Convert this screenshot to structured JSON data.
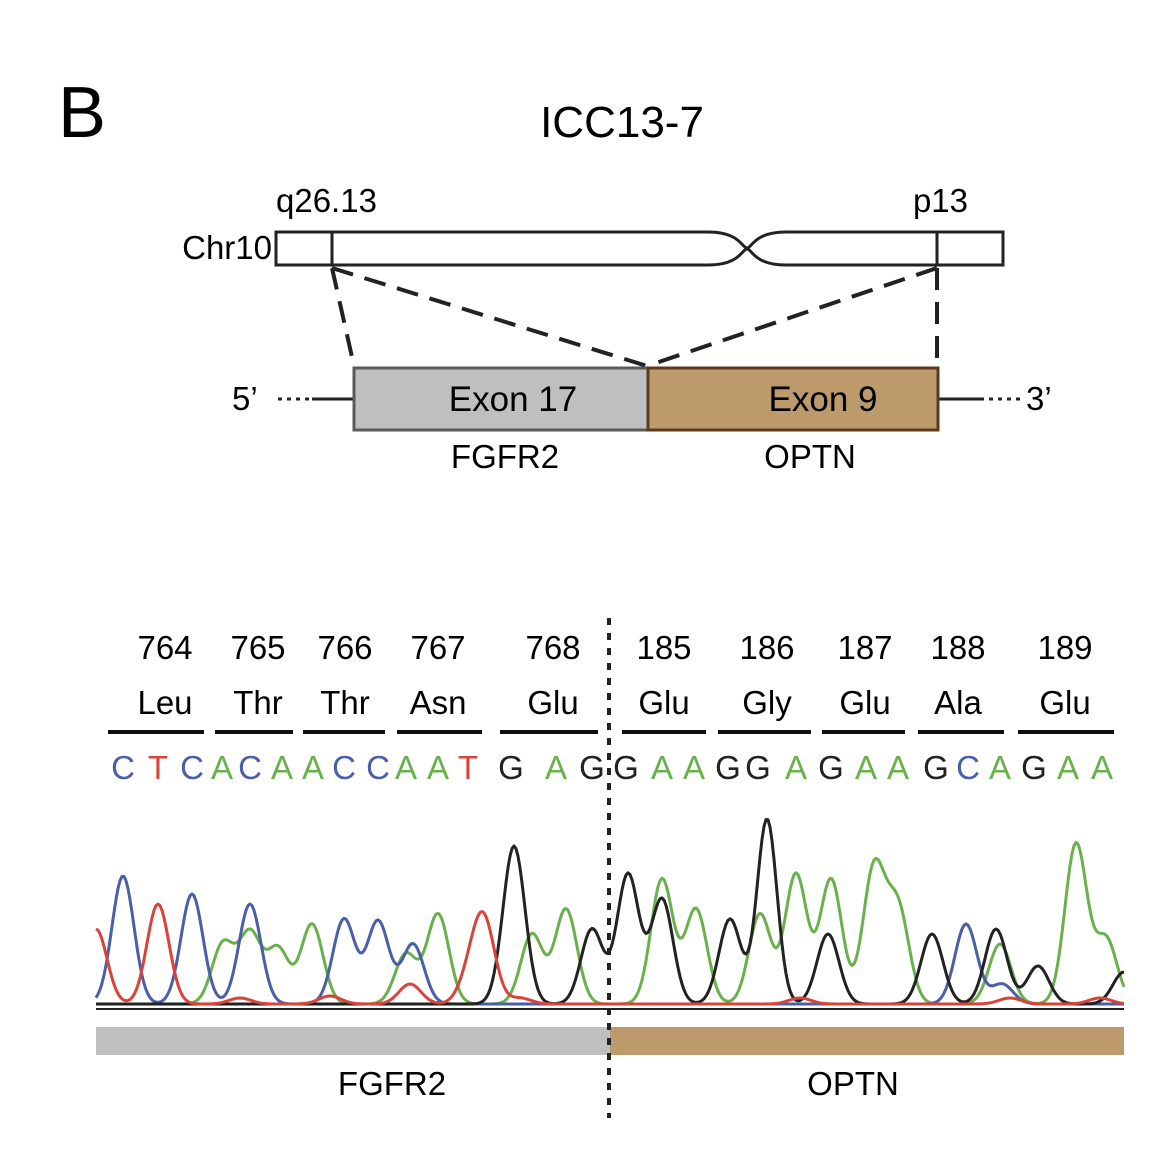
{
  "panel_letter": "B",
  "title": "ICC13-7",
  "chromosome": {
    "label": "Chr10",
    "left_band": "q26.13",
    "right_band": "p13"
  },
  "fusion": {
    "five_prime": "5’",
    "three_prime": "3’",
    "exon_left": "Exon 17",
    "exon_right": "Exon 9",
    "gene_left": "FGFR2",
    "gene_right": "OPTN"
  },
  "codons": [
    {
      "num": "764",
      "aa": "Leu"
    },
    {
      "num": "765",
      "aa": "Thr"
    },
    {
      "num": "766",
      "aa": "Thr"
    },
    {
      "num": "767",
      "aa": "Asn"
    },
    {
      "num": "768",
      "aa": "Glu"
    },
    {
      "num": "185",
      "aa": "Glu"
    },
    {
      "num": "186",
      "aa": "Gly"
    },
    {
      "num": "187",
      "aa": "Glu"
    },
    {
      "num": "188",
      "aa": "Ala"
    },
    {
      "num": "189",
      "aa": "Glu"
    }
  ],
  "sequence": [
    "C",
    "T",
    "C",
    "A",
    "C",
    "A",
    "A",
    "C",
    "C",
    "A",
    "A",
    "T",
    "G",
    "A",
    "G",
    "G",
    "A",
    "A",
    "G",
    "G",
    "A",
    "G",
    "A",
    "A",
    "G",
    "C",
    "A",
    "G",
    "A",
    "A"
  ],
  "base_colors": {
    "A": "#6ab04c",
    "C": "#4a5fa8",
    "G": "#222222",
    "T": "#d9433a"
  },
  "gene_bar": {
    "left_label": "FGFR2",
    "right_label": "OPTN"
  },
  "colors": {
    "fgfr2": "#bebfc1",
    "optn": "#bc9a6c",
    "fgfr2_border": "#5a5a5a",
    "optn_border": "#5c3a1c"
  }
}
